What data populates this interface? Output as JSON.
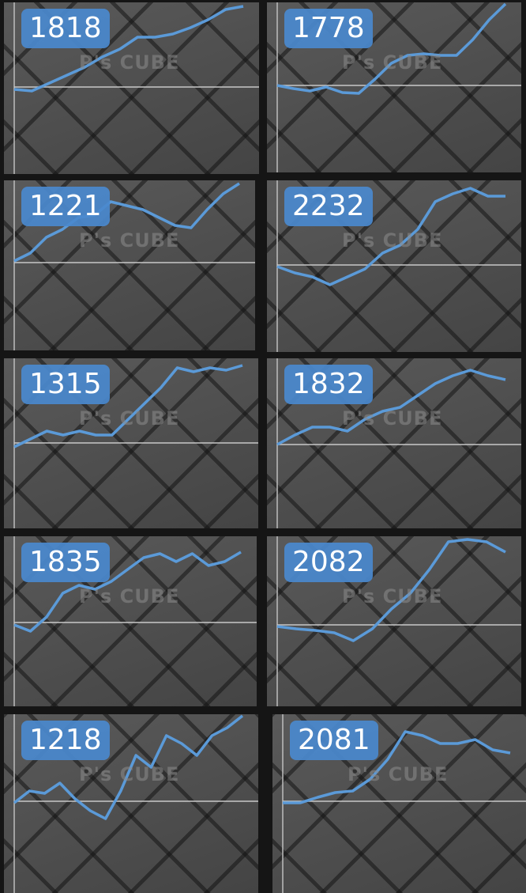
{
  "watermark": "P's CUBE",
  "line_color": "#5b9ad8",
  "badge_color": "#4a89ce",
  "chart_data": [
    {
      "type": "line",
      "label": "1818",
      "values": [
        -3,
        -5,
        5,
        15,
        25,
        38,
        48,
        63,
        63,
        67,
        75,
        85,
        98,
        102
      ]
    },
    {
      "type": "line",
      "label": "1778",
      "values": [
        0,
        -4,
        -7,
        -2,
        -9,
        -10,
        8,
        28,
        38,
        40,
        38,
        38,
        58,
        83,
        103
      ]
    },
    {
      "type": "line",
      "label": "1221",
      "values": [
        2,
        12,
        32,
        42,
        57,
        60,
        77,
        72,
        67,
        57,
        47,
        44,
        67,
        87,
        100
      ]
    },
    {
      "type": "line",
      "label": "2232",
      "values": [
        -2,
        -10,
        -15,
        -25,
        -15,
        -5,
        15,
        25,
        45,
        80,
        90,
        97,
        87,
        87
      ]
    },
    {
      "type": "line",
      "label": "1315",
      "values": [
        -5,
        5,
        15,
        10,
        15,
        10,
        10,
        30,
        50,
        70,
        95,
        90,
        95,
        92,
        98
      ]
    },
    {
      "type": "line",
      "label": "1832",
      "values": [
        0,
        12,
        22,
        22,
        17,
        32,
        42,
        47,
        62,
        77,
        87,
        94,
        87,
        82
      ]
    },
    {
      "type": "line",
      "label": "1835",
      "values": [
        -3,
        -11,
        7,
        37,
        47,
        42,
        52,
        67,
        82,
        87,
        77,
        87,
        72,
        77,
        89
      ]
    },
    {
      "type": "line",
      "label": "2082",
      "values": [
        -2,
        -5,
        -7,
        -10,
        -20,
        -5,
        20,
        40,
        70,
        105,
        108,
        105,
        92
      ]
    },
    {
      "type": "line",
      "label": "1218",
      "values": [
        -2,
        13,
        10,
        23,
        3,
        -12,
        -22,
        13,
        58,
        43,
        83,
        73,
        58,
        83,
        93,
        108
      ]
    },
    {
      "type": "line",
      "label": "2081",
      "values": [
        -2,
        -2,
        5,
        11,
        13,
        28,
        53,
        88,
        83,
        73,
        73,
        78,
        65,
        61
      ]
    }
  ]
}
